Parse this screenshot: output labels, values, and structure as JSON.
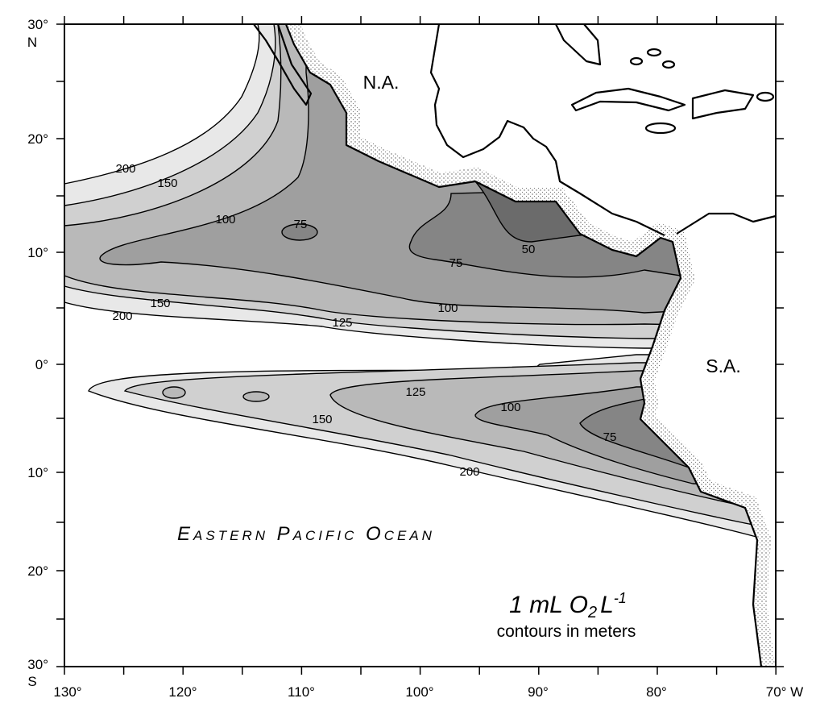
{
  "axes": {
    "y_labels": [
      "30°",
      "20°",
      "10°",
      "0°",
      "10°",
      "20°",
      "30°"
    ],
    "y_hemisphere": [
      "N",
      "S"
    ],
    "x_labels": [
      "130°",
      "120°",
      "110°",
      "100°",
      "90°",
      "80°",
      "70° W"
    ]
  },
  "region_labels": [
    "N.A.",
    "S.A."
  ],
  "ocean_label": "Eastern Pacific Ocean",
  "contour_labels": [
    "200",
    "150",
    "100",
    "75",
    "75",
    "50",
    "150",
    "200",
    "100",
    "125",
    "125",
    "150",
    "100",
    "75",
    "200"
  ],
  "legend": {
    "line1": [
      "1 mL O",
      "2",
      "L",
      "-1"
    ],
    "line2": "contours in meters"
  }
}
